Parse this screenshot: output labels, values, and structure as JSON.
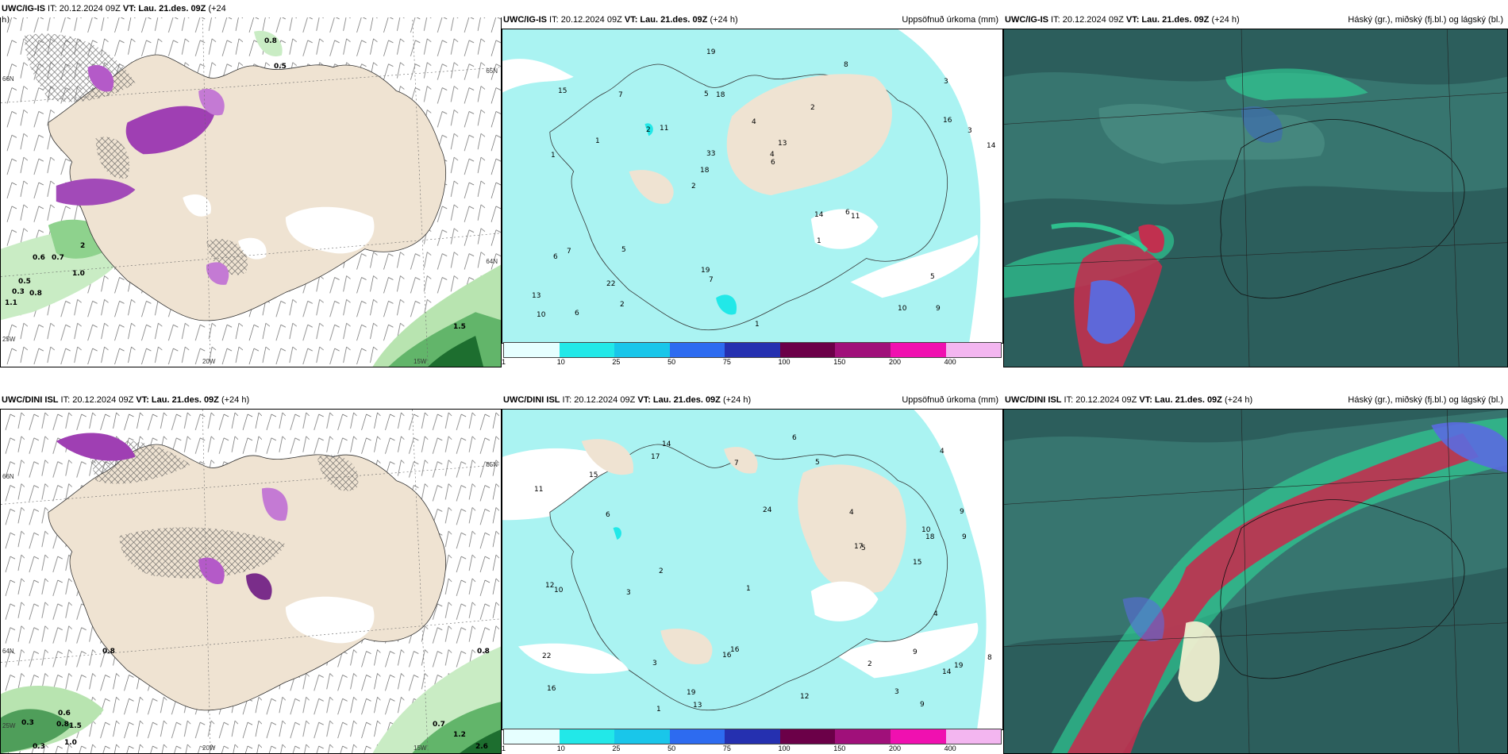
{
  "panels": {
    "top_left": {
      "header_left_model": "UWC/IG-IS",
      "header_left_it": " IT: 20.12.2024 09Z ",
      "header_left_vt": "VT: Lau. 21.des. 09Z",
      "header_left_lead": " (+24",
      "header_left_lead2": "h)",
      "lon_labels": [
        "20W",
        "15W",
        "25W"
      ],
      "lat_labels": [
        "66N",
        "65N",
        "64N"
      ],
      "values": [
        "0.8",
        "0.5",
        "0.5",
        "0.8",
        "0.3",
        "1.1",
        "0.6",
        "0.7",
        "2",
        "1.5",
        "1.0"
      ]
    },
    "top_mid": {
      "header_left_model": "UWC/IG-IS",
      "header_left_it": " IT: 20.12.2024 09Z ",
      "header_left_vt": "VT: Lau. 21.des. 09Z",
      "header_left_lead": " (+24 h)",
      "header_right": "Uppsöfnuð úrkoma (mm)",
      "colorbar_labels": [
        "1",
        "10",
        "25",
        "50",
        "75",
        "100",
        "150",
        "200",
        "400"
      ]
    },
    "top_right": {
      "header_left_model": "UWC/IG-IS",
      "header_left_it": " IT: 20.12.2024 09Z ",
      "header_left_vt": "VT: Lau. 21.des. 09Z",
      "header_left_lead": " (+24 h)",
      "header_right": "Háský (gr.), miðský (fj.bl.) og lágský (bl.)"
    },
    "bottom_left": {
      "header_left_model": "UWC/DINI ISL",
      "header_left_it": " IT: 20.12.2024 09Z ",
      "header_left_vt": "VT: Lau. 21.des. 09Z",
      "header_left_lead": " (+24 h)",
      "lon_labels": [
        "20W",
        "15W",
        "25W"
      ],
      "lat_labels": [
        "66N",
        "65N",
        "64N"
      ],
      "values": [
        "0.8",
        "0.3",
        "0.3",
        "0.8",
        "1.5",
        "1.0",
        "0.7",
        "1.2",
        "2.6",
        "0.6",
        "0.8"
      ]
    },
    "bottom_mid": {
      "header_left_model": "UWC/DINI ISL",
      "header_left_it": " IT: 20.12.2024 09Z ",
      "header_left_vt": "VT: Lau. 21.des. 09Z",
      "header_left_lead": " (+24 h)",
      "header_right": "Uppsöfnuð úrkoma (mm)",
      "colorbar_labels": [
        "1",
        "10",
        "25",
        "50",
        "75",
        "100",
        "150",
        "200",
        "400"
      ]
    },
    "bottom_right": {
      "header_left_model": "UWC/DINI ISL",
      "header_left_it": " IT: 20.12.2024 09Z ",
      "header_left_vt": "VT: Lau. 21.des. 09Z",
      "header_left_lead": " (+24 h)",
      "header_right": "Háský (gr.), miðský (fj.bl.) og lágský (bl.)"
    }
  },
  "precip_numbers_top": [
    "9",
    "1",
    "3",
    "2",
    "2",
    "6",
    "5",
    "4",
    "7",
    "11",
    "13",
    "22",
    "18",
    "13",
    "11",
    "15",
    "19",
    "14",
    "14",
    "16",
    "18",
    "19",
    "33",
    "7",
    "8",
    "5",
    "10",
    "5",
    "6",
    "1",
    "2",
    "1",
    "1",
    "2",
    "3",
    "4",
    "10",
    "7",
    "6",
    "6"
  ],
  "precip_numbers_bottom": [
    "9",
    "9",
    "19",
    "24",
    "16",
    "14",
    "10",
    "3",
    "4",
    "6",
    "9",
    "11",
    "15",
    "13",
    "22",
    "15",
    "14",
    "17",
    "16",
    "18",
    "12",
    "10",
    "12",
    "17",
    "19",
    "16",
    "6",
    "5",
    "4",
    "8",
    "3",
    "2",
    "1",
    "1",
    "4",
    "3",
    "5",
    "7",
    "9",
    "2"
  ],
  "colors": {
    "land": "#efe3d2",
    "sea_precip": "#aaf3f2",
    "cloud_dark": "#2c5e5c",
    "cloud_green": "#2fd89a",
    "cloud_red": "#c1304f",
    "cloud_blue": "#5a6be0",
    "colorbar": [
      "#e6ffff",
      "#22e8e8",
      "#19c6ea",
      "#2d6bf0",
      "#2530b0",
      "#6b0048",
      "#a0107a",
      "#f010b0",
      "#f3b6f0"
    ]
  }
}
